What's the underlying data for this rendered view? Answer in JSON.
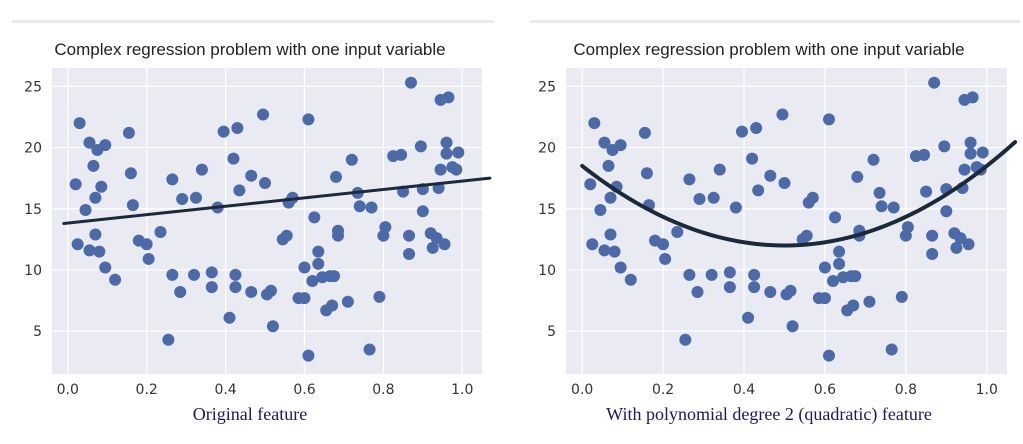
{
  "panels": [
    {
      "title": "Complex regression problem with one input variable",
      "caption": "Original feature"
    },
    {
      "title": "Complex regression problem with one input variable",
      "caption": "With polynomial degree 2 (quadratic) feature"
    }
  ],
  "colors": {
    "background": "#eaeaf2",
    "grid": "#ffffff",
    "points": "#4c6aa8",
    "fit_line": "#1b2a3a"
  },
  "chart_data": [
    {
      "type": "scatter",
      "title": "Complex regression problem with one input variable",
      "xlabel": "Original feature",
      "ylabel": "",
      "xlim": [
        -0.04,
        1.05
      ],
      "ylim": [
        1.5,
        26.5
      ],
      "xticks": [
        "0.0",
        "0.2",
        "0.4",
        "0.6",
        "0.8",
        "1.0"
      ],
      "yticks": [
        "5",
        "10",
        "15",
        "20",
        "25"
      ],
      "grid": true,
      "fit": {
        "type": "linear",
        "x": [
          -0.01,
          1.07
        ],
        "y": [
          13.8,
          17.5
        ]
      },
      "points": [
        [
          0.02,
          17.0
        ],
        [
          0.025,
          12.1
        ],
        [
          0.03,
          22.0
        ],
        [
          0.045,
          14.9
        ],
        [
          0.055,
          11.6
        ],
        [
          0.055,
          20.4
        ],
        [
          0.065,
          18.5
        ],
        [
          0.07,
          12.9
        ],
        [
          0.07,
          15.9
        ],
        [
          0.075,
          19.8
        ],
        [
          0.08,
          11.5
        ],
        [
          0.085,
          16.8
        ],
        [
          0.095,
          20.2
        ],
        [
          0.095,
          10.2
        ],
        [
          0.12,
          9.2
        ],
        [
          0.155,
          21.2
        ],
        [
          0.16,
          17.9
        ],
        [
          0.165,
          15.3
        ],
        [
          0.18,
          12.4
        ],
        [
          0.2,
          12.1
        ],
        [
          0.205,
          10.9
        ],
        [
          0.235,
          13.1
        ],
        [
          0.255,
          4.3
        ],
        [
          0.265,
          17.4
        ],
        [
          0.265,
          9.6
        ],
        [
          0.285,
          8.2
        ],
        [
          0.29,
          15.8
        ],
        [
          0.32,
          9.6
        ],
        [
          0.325,
          15.9
        ],
        [
          0.34,
          18.2
        ],
        [
          0.365,
          8.6
        ],
        [
          0.365,
          9.8
        ],
        [
          0.38,
          15.1
        ],
        [
          0.395,
          21.3
        ],
        [
          0.41,
          6.1
        ],
        [
          0.42,
          19.1
        ],
        [
          0.425,
          9.6
        ],
        [
          0.425,
          8.6
        ],
        [
          0.43,
          21.6
        ],
        [
          0.435,
          16.5
        ],
        [
          0.465,
          8.2
        ],
        [
          0.465,
          17.7
        ],
        [
          0.495,
          22.7
        ],
        [
          0.5,
          17.1
        ],
        [
          0.505,
          8.0
        ],
        [
          0.515,
          8.3
        ],
        [
          0.52,
          5.4
        ],
        [
          0.545,
          12.5
        ],
        [
          0.555,
          12.8
        ],
        [
          0.56,
          15.5
        ],
        [
          0.57,
          15.9
        ],
        [
          0.585,
          7.7
        ],
        [
          0.6,
          7.7
        ],
        [
          0.6,
          10.2
        ],
        [
          0.61,
          3.0
        ],
        [
          0.61,
          22.3
        ],
        [
          0.62,
          9.1
        ],
        [
          0.625,
          14.3
        ],
        [
          0.635,
          11.5
        ],
        [
          0.635,
          10.5
        ],
        [
          0.645,
          9.4
        ],
        [
          0.655,
          6.7
        ],
        [
          0.665,
          9.5
        ],
        [
          0.67,
          7.1
        ],
        [
          0.675,
          9.5
        ],
        [
          0.68,
          17.6
        ],
        [
          0.685,
          13.2
        ],
        [
          0.685,
          12.8
        ],
        [
          0.71,
          7.4
        ],
        [
          0.72,
          19.0
        ],
        [
          0.735,
          16.3
        ],
        [
          0.74,
          15.2
        ],
        [
          0.765,
          3.5
        ],
        [
          0.77,
          15.1
        ],
        [
          0.79,
          7.8
        ],
        [
          0.8,
          12.8
        ],
        [
          0.805,
          13.5
        ],
        [
          0.825,
          19.3
        ],
        [
          0.845,
          19.4
        ],
        [
          0.85,
          16.4
        ],
        [
          0.865,
          12.8
        ],
        [
          0.865,
          11.3
        ],
        [
          0.87,
          25.3
        ],
        [
          0.895,
          20.1
        ],
        [
          0.9,
          14.8
        ],
        [
          0.9,
          16.6
        ],
        [
          0.92,
          13.0
        ],
        [
          0.925,
          11.8
        ],
        [
          0.935,
          12.6
        ],
        [
          0.94,
          16.7
        ],
        [
          0.945,
          18.2
        ],
        [
          0.945,
          23.9
        ],
        [
          0.955,
          12.1
        ],
        [
          0.96,
          19.5
        ],
        [
          0.96,
          20.4
        ],
        [
          0.965,
          24.1
        ],
        [
          0.975,
          18.4
        ],
        [
          0.985,
          18.2
        ],
        [
          0.99,
          19.6
        ]
      ]
    },
    {
      "type": "scatter",
      "title": "Complex regression problem with one input variable",
      "xlabel": "With polynomial degree 2 (quadratic) feature",
      "ylabel": "",
      "xlim": [
        -0.04,
        1.05
      ],
      "ylim": [
        1.5,
        26.5
      ],
      "xticks": [
        "0.0",
        "0.2",
        "0.4",
        "0.6",
        "0.8",
        "1.0"
      ],
      "yticks": [
        "5",
        "10",
        "15",
        "20",
        "25"
      ],
      "grid": true,
      "fit": {
        "type": "quadratic",
        "x_range": [
          0.0,
          1.07
        ],
        "coefficients": [
          18.5,
          -26.0,
          26.0
        ]
      },
      "points": [
        [
          0.02,
          17.0
        ],
        [
          0.025,
          12.1
        ],
        [
          0.03,
          22.0
        ],
        [
          0.045,
          14.9
        ],
        [
          0.055,
          11.6
        ],
        [
          0.055,
          20.4
        ],
        [
          0.065,
          18.5
        ],
        [
          0.07,
          12.9
        ],
        [
          0.07,
          15.9
        ],
        [
          0.075,
          19.8
        ],
        [
          0.08,
          11.5
        ],
        [
          0.085,
          16.8
        ],
        [
          0.095,
          20.2
        ],
        [
          0.095,
          10.2
        ],
        [
          0.12,
          9.2
        ],
        [
          0.155,
          21.2
        ],
        [
          0.16,
          17.9
        ],
        [
          0.165,
          15.3
        ],
        [
          0.18,
          12.4
        ],
        [
          0.2,
          12.1
        ],
        [
          0.205,
          10.9
        ],
        [
          0.235,
          13.1
        ],
        [
          0.255,
          4.3
        ],
        [
          0.265,
          17.4
        ],
        [
          0.265,
          9.6
        ],
        [
          0.285,
          8.2
        ],
        [
          0.29,
          15.8
        ],
        [
          0.32,
          9.6
        ],
        [
          0.325,
          15.9
        ],
        [
          0.34,
          18.2
        ],
        [
          0.365,
          8.6
        ],
        [
          0.365,
          9.8
        ],
        [
          0.38,
          15.1
        ],
        [
          0.395,
          21.3
        ],
        [
          0.41,
          6.1
        ],
        [
          0.42,
          19.1
        ],
        [
          0.425,
          9.6
        ],
        [
          0.425,
          8.6
        ],
        [
          0.43,
          21.6
        ],
        [
          0.435,
          16.5
        ],
        [
          0.465,
          8.2
        ],
        [
          0.465,
          17.7
        ],
        [
          0.495,
          22.7
        ],
        [
          0.5,
          17.1
        ],
        [
          0.505,
          8.0
        ],
        [
          0.515,
          8.3
        ],
        [
          0.52,
          5.4
        ],
        [
          0.545,
          12.5
        ],
        [
          0.555,
          12.8
        ],
        [
          0.56,
          15.5
        ],
        [
          0.57,
          15.9
        ],
        [
          0.585,
          7.7
        ],
        [
          0.6,
          7.7
        ],
        [
          0.6,
          10.2
        ],
        [
          0.61,
          3.0
        ],
        [
          0.61,
          22.3
        ],
        [
          0.62,
          9.1
        ],
        [
          0.625,
          14.3
        ],
        [
          0.635,
          11.5
        ],
        [
          0.635,
          10.5
        ],
        [
          0.645,
          9.4
        ],
        [
          0.655,
          6.7
        ],
        [
          0.665,
          9.5
        ],
        [
          0.67,
          7.1
        ],
        [
          0.675,
          9.5
        ],
        [
          0.68,
          17.6
        ],
        [
          0.685,
          13.2
        ],
        [
          0.685,
          12.8
        ],
        [
          0.71,
          7.4
        ],
        [
          0.72,
          19.0
        ],
        [
          0.735,
          16.3
        ],
        [
          0.74,
          15.2
        ],
        [
          0.765,
          3.5
        ],
        [
          0.77,
          15.1
        ],
        [
          0.79,
          7.8
        ],
        [
          0.8,
          12.8
        ],
        [
          0.805,
          13.5
        ],
        [
          0.825,
          19.3
        ],
        [
          0.845,
          19.4
        ],
        [
          0.85,
          16.4
        ],
        [
          0.865,
          12.8
        ],
        [
          0.865,
          11.3
        ],
        [
          0.87,
          25.3
        ],
        [
          0.895,
          20.1
        ],
        [
          0.9,
          14.8
        ],
        [
          0.9,
          16.6
        ],
        [
          0.92,
          13.0
        ],
        [
          0.925,
          11.8
        ],
        [
          0.935,
          12.6
        ],
        [
          0.94,
          16.7
        ],
        [
          0.945,
          18.2
        ],
        [
          0.945,
          23.9
        ],
        [
          0.955,
          12.1
        ],
        [
          0.96,
          19.5
        ],
        [
          0.96,
          20.4
        ],
        [
          0.965,
          24.1
        ],
        [
          0.975,
          18.4
        ],
        [
          0.985,
          18.2
        ],
        [
          0.99,
          19.6
        ]
      ]
    }
  ]
}
